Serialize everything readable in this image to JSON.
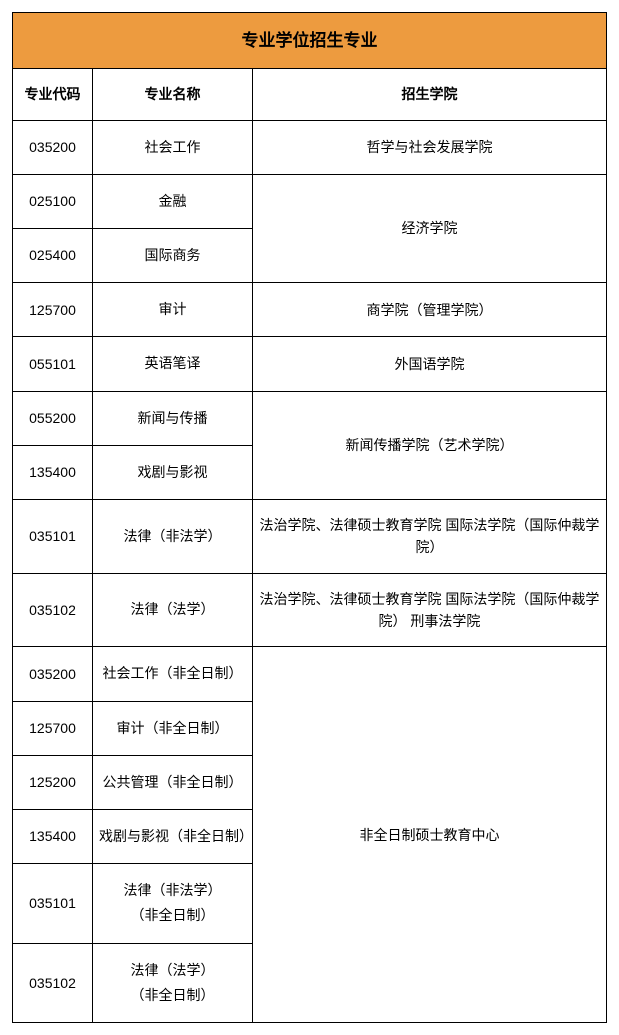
{
  "table": {
    "title": "专业学位招生专业",
    "title_bg": "#ed9b3f",
    "border_color": "#000000",
    "columns": {
      "code": "专业代码",
      "name": "专业名称",
      "college": "招生学院"
    },
    "rows": [
      {
        "code": "035200",
        "name": "社会工作",
        "college": "哲学与社会发展学院",
        "college_rows": 1
      },
      {
        "code": "025100",
        "name": "金融",
        "college": "经济学院",
        "college_rows": 2
      },
      {
        "code": "025400",
        "name": "国际商务"
      },
      {
        "code": "125700",
        "name": "审计",
        "college": "商学院（管理学院）",
        "college_rows": 1
      },
      {
        "code": "055101",
        "name": "英语笔译",
        "college": "外国语学院",
        "college_rows": 1
      },
      {
        "code": "055200",
        "name": "新闻与传播",
        "college": "新闻传播学院（艺术学院）",
        "college_rows": 2
      },
      {
        "code": "135400",
        "name": "戏剧与影视"
      },
      {
        "code": "035101",
        "name": "法律（非法学）",
        "college": "法治学院、法律硕士教育学院 国际法学院（国际仲裁学院）",
        "college_rows": 1
      },
      {
        "code": "035102",
        "name": "法律（法学）",
        "college": "法治学院、法律硕士教育学院 国际法学院（国际仲裁学院） 刑事法学院",
        "college_rows": 1
      },
      {
        "code": "035200",
        "name": "社会工作（非全日制）",
        "college": "非全日制硕士教育中心",
        "college_rows": 6
      },
      {
        "code": "125700",
        "name": "审计（非全日制）"
      },
      {
        "code": "125200",
        "name": "公共管理（非全日制）"
      },
      {
        "code": "135400",
        "name": "戏剧与影视（非全日制）"
      },
      {
        "code": "035101",
        "name": "法律（非法学）\n（非全日制）"
      },
      {
        "code": "035102",
        "name": "法律（法学）\n（非全日制）"
      }
    ]
  }
}
